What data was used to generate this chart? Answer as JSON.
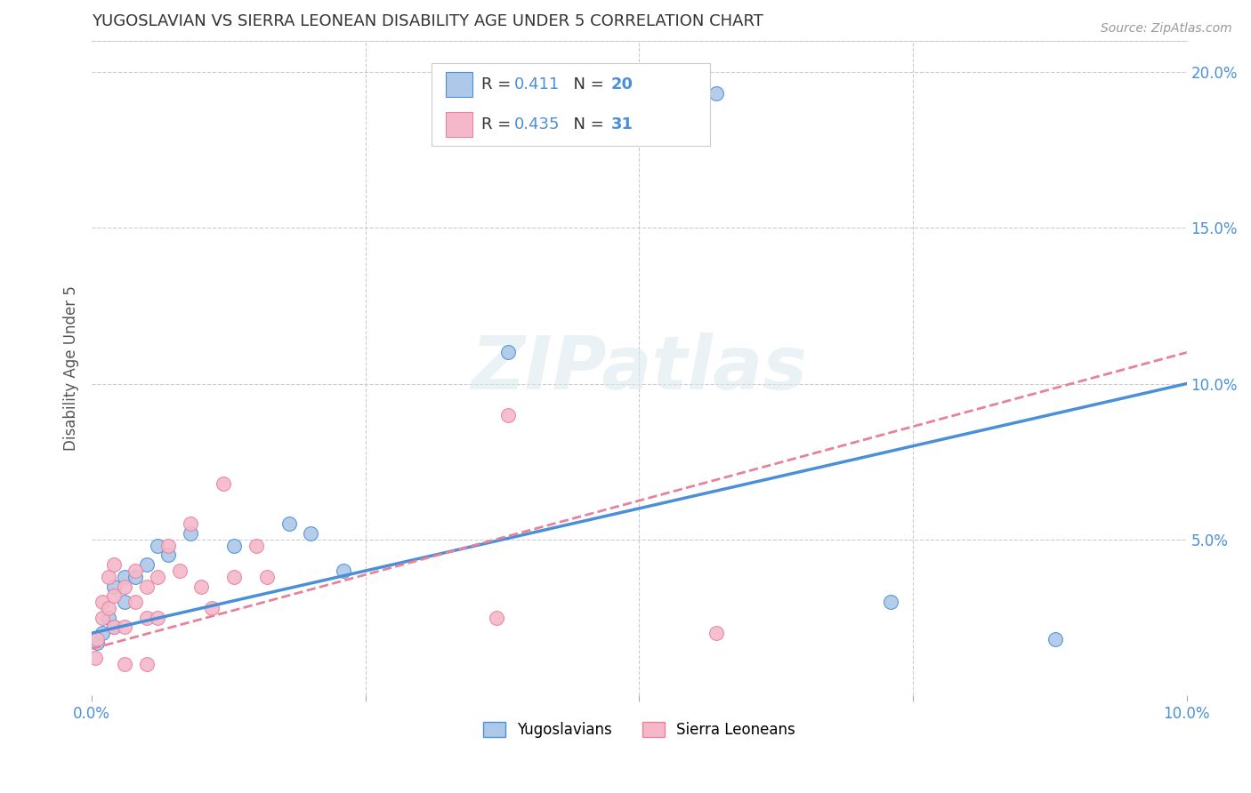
{
  "title": "YUGOSLAVIAN VS SIERRA LEONEAN DISABILITY AGE UNDER 5 CORRELATION CHART",
  "source": "Source: ZipAtlas.com",
  "ylabel": "Disability Age Under 5",
  "legend_xlabel": "Yugoslavians",
  "legend_ylabel": "Sierra Leoneans",
  "R_yugo": 0.411,
  "N_yugo": 20,
  "R_sierra": 0.435,
  "N_sierra": 31,
  "yugo_color": "#adc8e8",
  "sierra_color": "#f5b8cb",
  "yugo_line_color": "#4a90d9",
  "sierra_line_color": "#e8829a",
  "background_color": "#ffffff",
  "watermark": "ZIPatlas",
  "xlim": [
    0.0,
    0.1
  ],
  "ylim": [
    0.0,
    0.21
  ],
  "yugo_x": [
    0.0005,
    0.001,
    0.0015,
    0.002,
    0.002,
    0.003,
    0.003,
    0.004,
    0.005,
    0.006,
    0.007,
    0.009,
    0.013,
    0.018,
    0.02,
    0.023,
    0.038,
    0.057,
    0.073,
    0.088
  ],
  "yugo_y": [
    0.017,
    0.02,
    0.025,
    0.022,
    0.035,
    0.03,
    0.038,
    0.038,
    0.042,
    0.048,
    0.045,
    0.052,
    0.048,
    0.055,
    0.052,
    0.04,
    0.11,
    0.193,
    0.03,
    0.018
  ],
  "sierra_x": [
    0.0003,
    0.0005,
    0.001,
    0.001,
    0.0015,
    0.0015,
    0.002,
    0.002,
    0.002,
    0.003,
    0.003,
    0.003,
    0.004,
    0.004,
    0.005,
    0.005,
    0.005,
    0.006,
    0.006,
    0.007,
    0.008,
    0.009,
    0.01,
    0.011,
    0.012,
    0.013,
    0.015,
    0.016,
    0.037,
    0.038,
    0.057
  ],
  "sierra_y": [
    0.012,
    0.018,
    0.025,
    0.03,
    0.028,
    0.038,
    0.022,
    0.032,
    0.042,
    0.01,
    0.022,
    0.035,
    0.03,
    0.04,
    0.01,
    0.025,
    0.035,
    0.025,
    0.038,
    0.048,
    0.04,
    0.055,
    0.035,
    0.028,
    0.068,
    0.038,
    0.048,
    0.038,
    0.025,
    0.09,
    0.02
  ]
}
